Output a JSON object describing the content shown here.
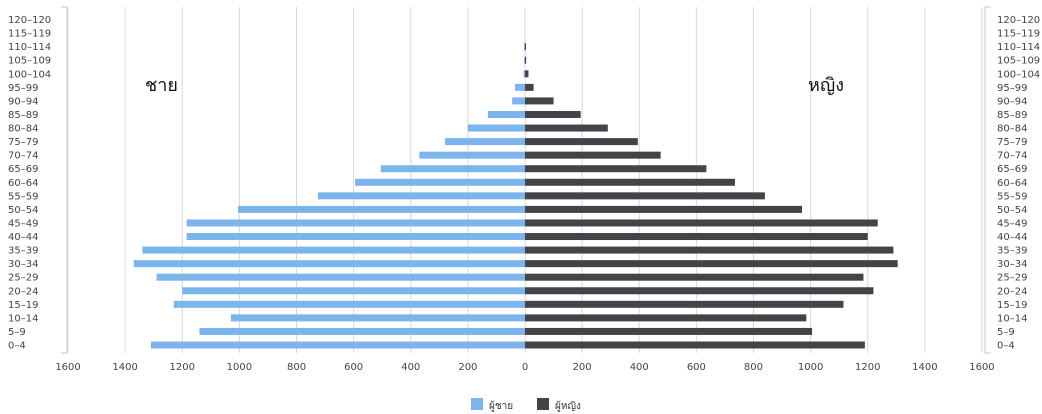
{
  "chart_data": {
    "type": "bar",
    "orientation": "horizontal",
    "subtype": "population-pyramid",
    "categories": [
      "0–4",
      "5–9",
      "10–14",
      "15–19",
      "20–24",
      "25–29",
      "30–34",
      "35–39",
      "40–44",
      "45–49",
      "50–54",
      "55–59",
      "60–64",
      "65–69",
      "70–74",
      "75–79",
      "80–84",
      "85–89",
      "90–94",
      "95–99",
      "100–104",
      "105–109",
      "110–114",
      "115–119",
      "120–120"
    ],
    "series": [
      {
        "name": "ผู้ชาย",
        "side": "left",
        "color": "#7cb5ec",
        "values": [
          1310,
          1140,
          1030,
          1230,
          1200,
          1290,
          1370,
          1340,
          1185,
          1185,
          1005,
          725,
          595,
          505,
          370,
          280,
          200,
          130,
          45,
          35,
          5,
          2,
          1,
          0,
          0
        ]
      },
      {
        "name": "ผู้หญิง",
        "side": "right",
        "color": "#434348",
        "values": [
          1190,
          1005,
          985,
          1115,
          1220,
          1185,
          1305,
          1290,
          1200,
          1235,
          970,
          840,
          735,
          635,
          475,
          395,
          290,
          195,
          100,
          30,
          12,
          4,
          2,
          0,
          0
        ]
      }
    ],
    "side_labels": {
      "left": "ชาย",
      "right": "หญิง"
    },
    "x_ticks": [
      "1600",
      "1400",
      "1200",
      "1000",
      "800",
      "600",
      "400",
      "200",
      "0",
      "200",
      "400",
      "600",
      "800",
      "1000",
      "1200",
      "1400",
      "1600"
    ],
    "xlim": [
      -1600,
      1600
    ],
    "grid": true,
    "legend_position": "bottom-center"
  }
}
